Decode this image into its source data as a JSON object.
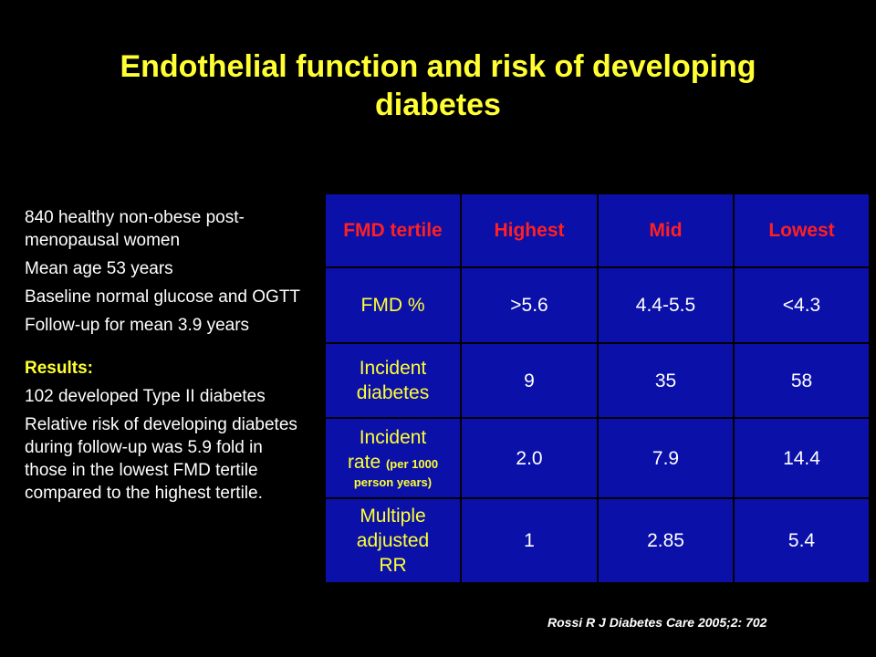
{
  "slide": {
    "title_line1": "Endothelial function and risk of developing",
    "title_line2": "diabetes",
    "citation": "Rossi R J Diabetes Care 2005;2: 702",
    "colors": {
      "background": "#000000",
      "title": "#ffff33",
      "table_background": "#0b10a8",
      "table_header": "#ff2020",
      "row_label": "#ffff33",
      "body_text": "#ffffff"
    }
  },
  "study": {
    "points": [
      "840 healthy non-obese post-menopausal women",
      "Mean age 53 years",
      "Baseline normal glucose and OGTT",
      "Follow-up for mean 3.9 years"
    ],
    "results_heading": "Results:",
    "results": [
      "102 developed Type II diabetes",
      "Relative risk of developing diabetes during follow-up was 5.9 fold in those in the lowest FMD tertile compared to the highest tertile."
    ]
  },
  "table": {
    "headers": [
      "FMD tertile",
      "Highest",
      "Mid",
      "Lowest"
    ],
    "rows": [
      {
        "label_line1": "FMD %",
        "values": [
          ">5.6",
          "4.4-5.5",
          "<4.3"
        ]
      },
      {
        "label_line1": "Incident",
        "label_line2": "diabetes",
        "values": [
          "9",
          "35",
          "58"
        ]
      },
      {
        "label_line1": "Incident",
        "label_line2": "rate",
        "label_small1": "(per 1000",
        "label_small2": "person years)",
        "values": [
          "2.0",
          "7.9",
          "14.4"
        ]
      },
      {
        "label_line1": "Multiple",
        "label_line2": "adjusted",
        "label_line3": "RR",
        "values": [
          "1",
          "2.85",
          "5.4"
        ]
      }
    ]
  }
}
